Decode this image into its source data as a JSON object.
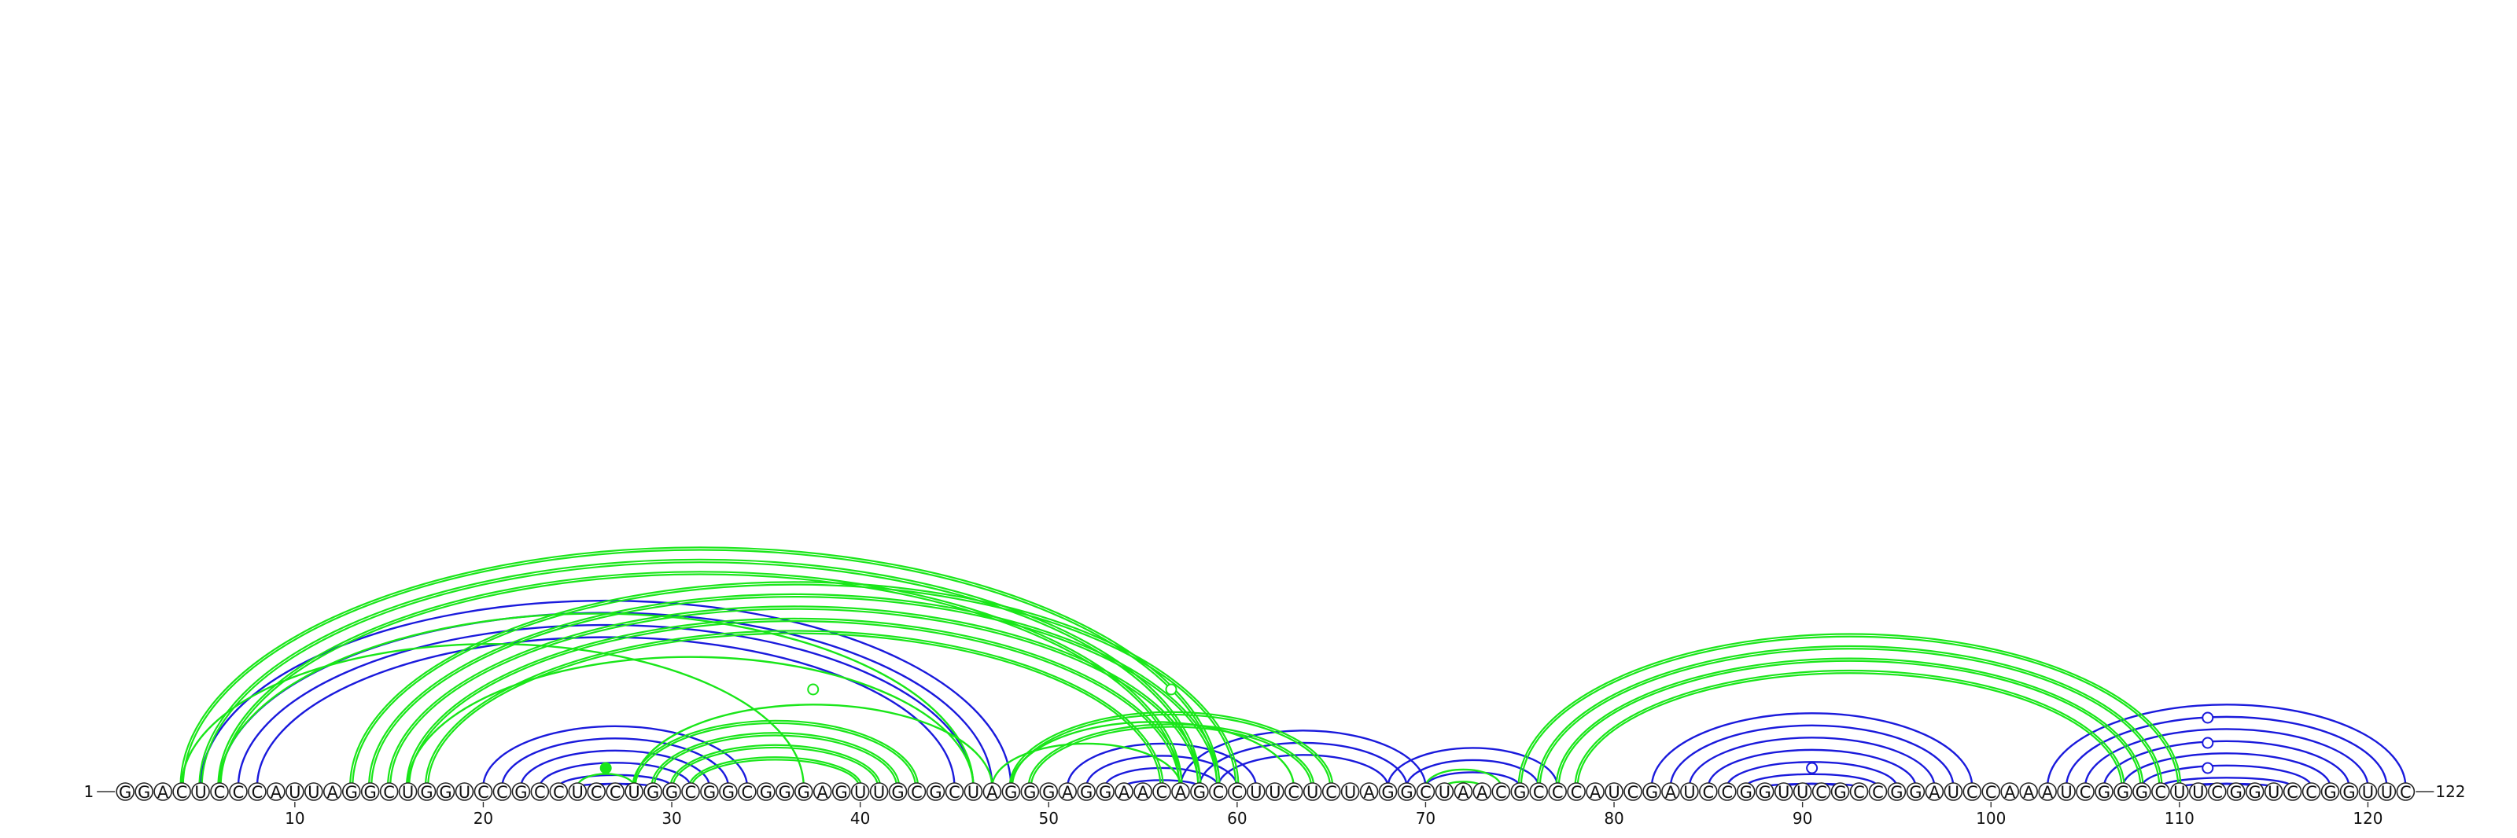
{
  "sequence": "GGACUCCCAUUAGGCUGGUCCGCCUCCUGGCGGCGGGAGUUGCGCUAGGGAGGAACAGCCUUCUCUAGGCUAACGCCCAUCGAUCCGGUUCGCCGGAUCCAAAUCGGGCUUCGGUCCGGUUC",
  "start_label": "1",
  "end_label": "122",
  "tick_labels": [
    "10",
    "20",
    "30",
    "40",
    "50",
    "60",
    "70",
    "80",
    "90",
    "100",
    "110",
    "120"
  ],
  "colors": {
    "blue": "#1a1adc",
    "green": "#19e619"
  },
  "blue_stems": [
    [
      5,
      48,
      0,
      4
    ],
    [
      20,
      34,
      0,
      7
    ],
    [
      51,
      61,
      0,
      4
    ],
    [
      57,
      70,
      0,
      3
    ],
    [
      68,
      77,
      0,
      3
    ],
    [
      82,
      99,
      0,
      10
    ],
    [
      103,
      122,
      0,
      13
    ]
  ],
  "green_stems": [
    [
      4,
      59,
      1,
      3
    ],
    [
      4,
      37,
      0,
      1
    ],
    [
      6,
      46,
      0,
      1
    ],
    [
      13,
      60,
      1,
      5
    ],
    [
      16,
      46,
      0,
      1
    ],
    [
      25,
      28,
      0,
      1
    ],
    [
      28,
      43,
      1,
      4
    ],
    [
      28,
      47,
      0,
      1
    ],
    [
      47,
      57,
      0,
      1
    ],
    [
      48,
      65,
      1,
      2
    ],
    [
      48,
      63,
      0,
      1
    ],
    [
      70,
      74,
      0,
      2
    ],
    [
      75,
      110,
      1,
      4
    ]
  ],
  "open_markers": [
    {
      "pos": 37.5,
      "level": 1
    },
    {
      "pos": 56.5,
      "level": 1
    },
    {
      "pos": 90.5,
      "level": 1
    },
    {
      "pos": 111.5,
      "level": 1
    },
    {
      "pos": 111.5,
      "level": 2
    },
    {
      "pos": 111.5,
      "level": 3
    }
  ],
  "filled_markers": [
    {
      "pos": 26.5,
      "level": 1
    }
  ]
}
